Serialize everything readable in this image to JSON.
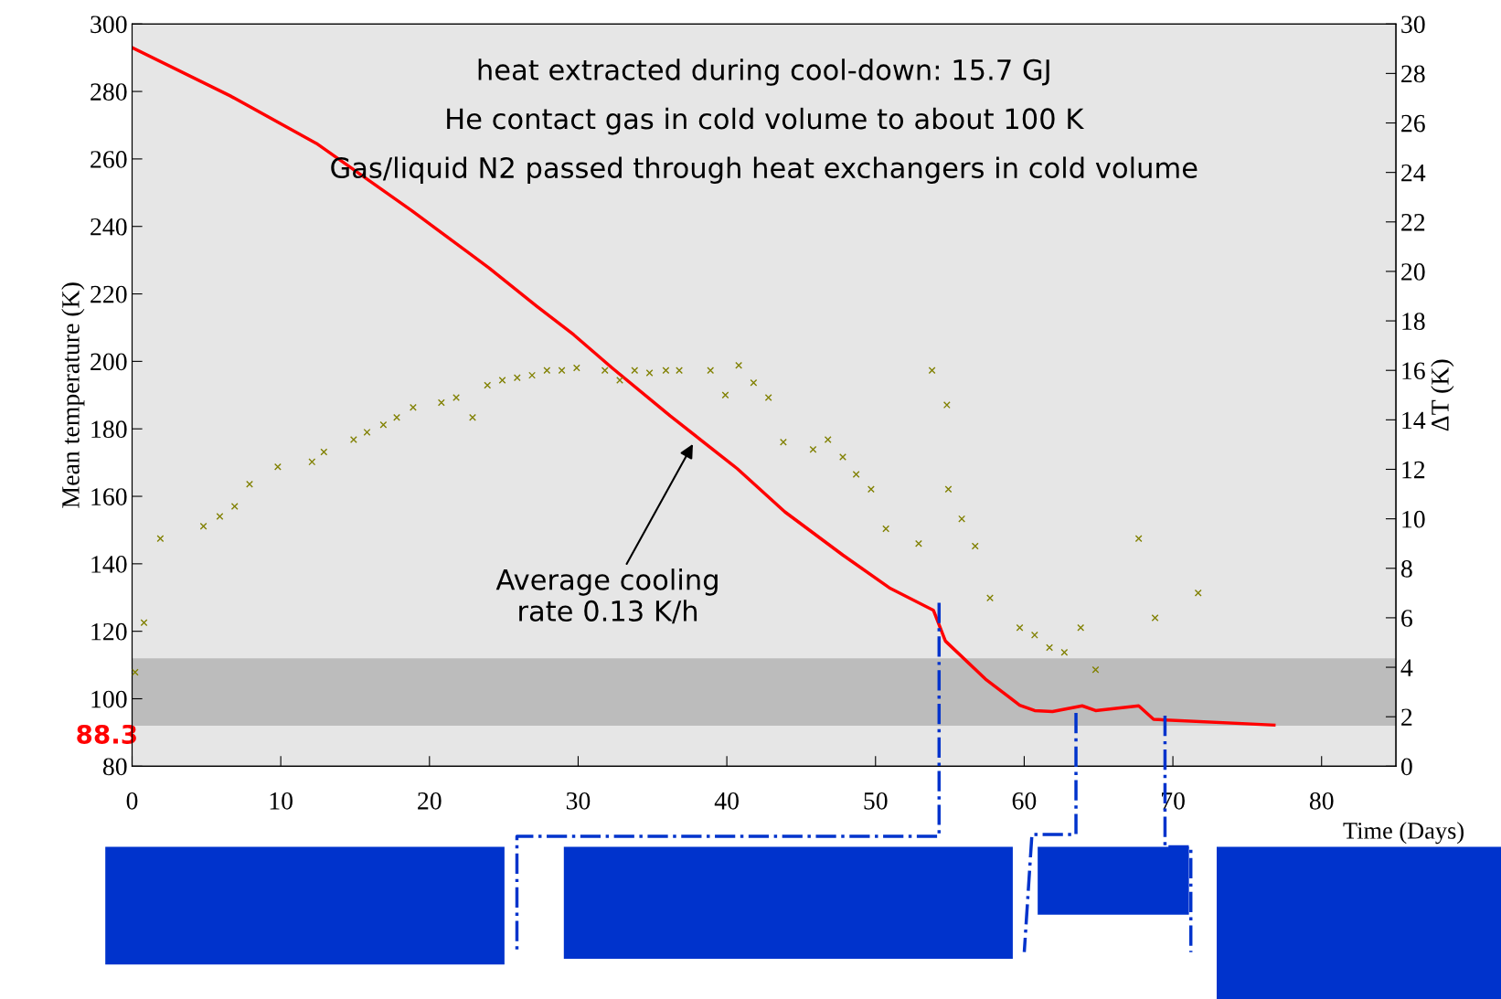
{
  "chart_data": {
    "type": "line",
    "xlabel": "Time (Days)",
    "ylabel": "Mean temperature (K)",
    "y2label": "ΔT (K)",
    "xlim": [
      0,
      85
    ],
    "xticks": [
      0,
      10,
      20,
      30,
      40,
      50,
      60,
      70,
      80
    ],
    "ylim": [
      80,
      300
    ],
    "yticks": [
      80,
      100,
      120,
      140,
      160,
      180,
      200,
      220,
      240,
      260,
      280,
      300
    ],
    "y2lim": [
      0,
      30
    ],
    "y2ticks": [
      0,
      2,
      4,
      6,
      8,
      10,
      12,
      14,
      16,
      18,
      20,
      22,
      24,
      26,
      28,
      30
    ],
    "grid": false,
    "bands": [
      {
        "axis": "y",
        "from": 92,
        "to": 112,
        "color": "#bcbcbc"
      }
    ],
    "series": [
      {
        "color": "#ff0000",
        "line_style": "solid",
        "x": [
          0,
          6.6,
          12.4,
          18.8,
          24.0,
          27.2,
          29.7,
          32.3,
          36.2,
          40.7,
          43.9,
          47.8,
          51.0,
          53.9,
          54.7,
          57.4,
          59.7,
          60.7,
          61.9,
          63.9,
          64.8,
          67.7,
          68.7,
          76.8
        ],
        "values": [
          293,
          278.7,
          264.6,
          244.7,
          227.7,
          216.4,
          207.9,
          198.0,
          183.8,
          168.2,
          155.4,
          142.6,
          132.7,
          126.2,
          117.1,
          105.8,
          98.1,
          96.5,
          96.2,
          97.9,
          96.5,
          97.9,
          93.9,
          92.2
        ]
      },
      {
        "type": "scatter",
        "axis": "y2",
        "marker": "cross",
        "color": "#808000",
        "x": [
          0.2,
          0.8,
          1.9,
          4.8,
          5.9,
          6.9,
          7.9,
          9.8,
          12.1,
          12.9,
          14.9,
          15.8,
          16.9,
          17.8,
          18.9,
          20.8,
          21.8,
          22.9,
          23.9,
          24.9,
          25.9,
          26.9,
          27.9,
          28.9,
          29.9,
          31.8,
          32.8,
          33.8,
          34.8,
          35.9,
          36.8,
          38.9,
          39.9,
          40.8,
          41.8,
          42.8,
          43.8,
          45.8,
          46.8,
          47.8,
          48.7,
          49.7,
          50.7,
          52.9,
          53.8,
          54.8,
          54.9,
          55.8,
          56.7,
          57.7,
          59.7,
          60.7,
          61.7,
          62.7,
          63.8,
          64.8,
          67.7,
          68.8,
          71.7
        ],
        "values": [
          3.8,
          5.8,
          9.2,
          9.7,
          10.1,
          10.5,
          11.4,
          12.1,
          12.3,
          12.7,
          13.2,
          13.5,
          13.8,
          14.1,
          14.5,
          14.7,
          14.9,
          14.1,
          15.4,
          15.6,
          15.7,
          15.8,
          16.0,
          16.0,
          16.1,
          16.0,
          15.6,
          16.0,
          15.9,
          16.0,
          16.0,
          16.0,
          15.0,
          16.2,
          15.5,
          14.9,
          13.1,
          12.8,
          13.2,
          12.5,
          11.8,
          11.2,
          9.6,
          9.0,
          16.0,
          14.6,
          11.2,
          10.0,
          8.9,
          6.8,
          5.6,
          5.3,
          4.8,
          4.6,
          5.6,
          3.9,
          9.2,
          6.0,
          7.0
        ]
      }
    ],
    "annotations": [
      "heat extracted during cool-down: 15.7 GJ",
      "He contact gas in cold volume to about 100 K",
      "Gas/liquid N2 passed through heat exchangers in cold volume",
      "88.3",
      "Average cooling\nrate 0.13 K/h"
    ]
  }
}
